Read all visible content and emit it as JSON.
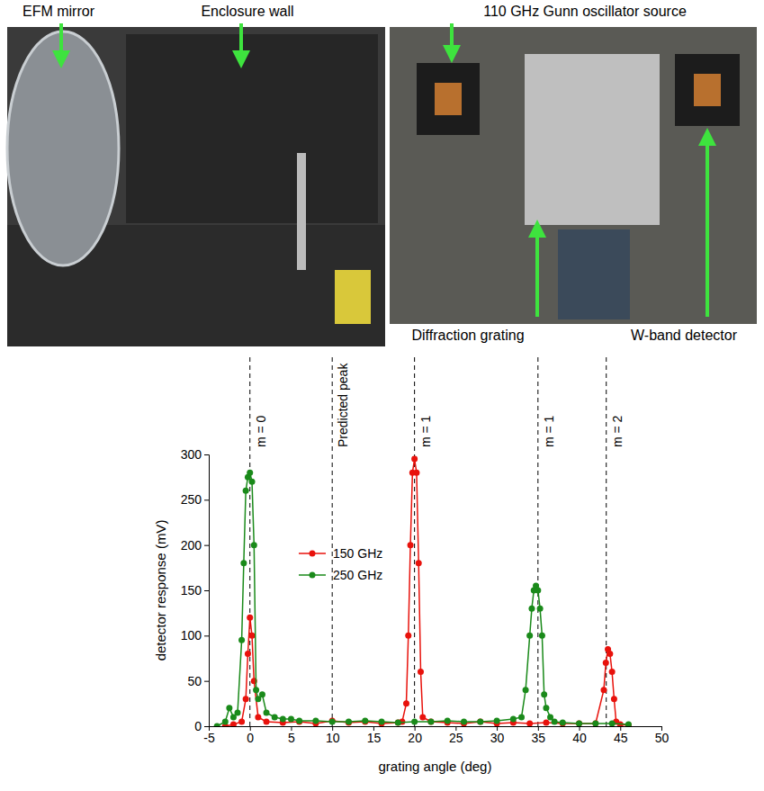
{
  "photos": {
    "labels": [
      "EFM mirror",
      "Enclosure wall",
      "110 GHz Gunn oscillator source",
      "Diffraction grating",
      "W-band detector"
    ]
  },
  "chart_data": {
    "type": "line",
    "x_label": "grating angle (deg)",
    "y_label": "detector response (mV)",
    "xlim": [
      -5,
      50
    ],
    "xticks": [
      -5,
      0,
      5,
      10,
      15,
      20,
      25,
      30,
      35,
      40,
      45,
      50
    ],
    "ylim": [
      0,
      300
    ],
    "yticks": [
      0,
      50,
      100,
      150,
      200,
      250,
      300
    ],
    "legend": "upper left",
    "marker": "circle",
    "series": [
      {
        "name": "150 GHz",
        "color": "#e8120c",
        "x": [
          -3,
          -2,
          -1,
          -0.5,
          -0.25,
          0,
          0.25,
          0.5,
          1,
          2,
          4,
          6,
          8,
          10,
          12,
          14,
          16,
          18,
          18.5,
          19,
          19.25,
          19.5,
          19.75,
          20,
          20.25,
          20.5,
          20.75,
          21,
          22,
          24,
          26,
          28,
          30,
          32,
          34,
          36,
          38,
          40,
          42,
          43,
          43.25,
          43.5,
          43.75,
          44,
          44.25,
          44.5,
          45,
          46
        ],
        "values": [
          0,
          2,
          5,
          30,
          80,
          120,
          100,
          50,
          10,
          5,
          4,
          5,
          3,
          6,
          4,
          5,
          3,
          4,
          5,
          25,
          100,
          200,
          280,
          295,
          280,
          180,
          60,
          10,
          5,
          4,
          3,
          5,
          3,
          4,
          3,
          4,
          3,
          3,
          3,
          40,
          70,
          85,
          80,
          60,
          30,
          5,
          2,
          1
        ]
      },
      {
        "name": "250 GHz",
        "color": "#1a8a1a",
        "x": [
          -4,
          -3,
          -2.5,
          -2,
          -1.5,
          -1,
          -0.75,
          -0.5,
          -0.25,
          0,
          0.25,
          0.5,
          0.75,
          1,
          1.5,
          2,
          3,
          4,
          5,
          6,
          8,
          10,
          12,
          14,
          16,
          18,
          20,
          22,
          24,
          26,
          28,
          30,
          32,
          33,
          33.5,
          34,
          34.25,
          34.5,
          34.75,
          35,
          35.25,
          35.5,
          35.75,
          36,
          36.5,
          37,
          38,
          40,
          42,
          44,
          46
        ],
        "values": [
          0,
          5,
          20,
          10,
          15,
          95,
          180,
          260,
          275,
          280,
          270,
          200,
          40,
          30,
          35,
          15,
          10,
          8,
          8,
          6,
          6,
          5,
          5,
          6,
          5,
          4,
          5,
          5,
          6,
          5,
          5,
          6,
          8,
          10,
          40,
          100,
          130,
          150,
          155,
          150,
          130,
          100,
          35,
          20,
          10,
          5,
          4,
          3,
          3,
          3,
          2
        ]
      }
    ],
    "annotations": [
      {
        "x": 0,
        "label": "m = 0"
      },
      {
        "x": 10,
        "label": "Predicted peak"
      },
      {
        "x": 20,
        "label": "m = 1"
      },
      {
        "x": 35,
        "label": "m = 1"
      },
      {
        "x": 43.3,
        "label": "m = 2"
      }
    ]
  }
}
